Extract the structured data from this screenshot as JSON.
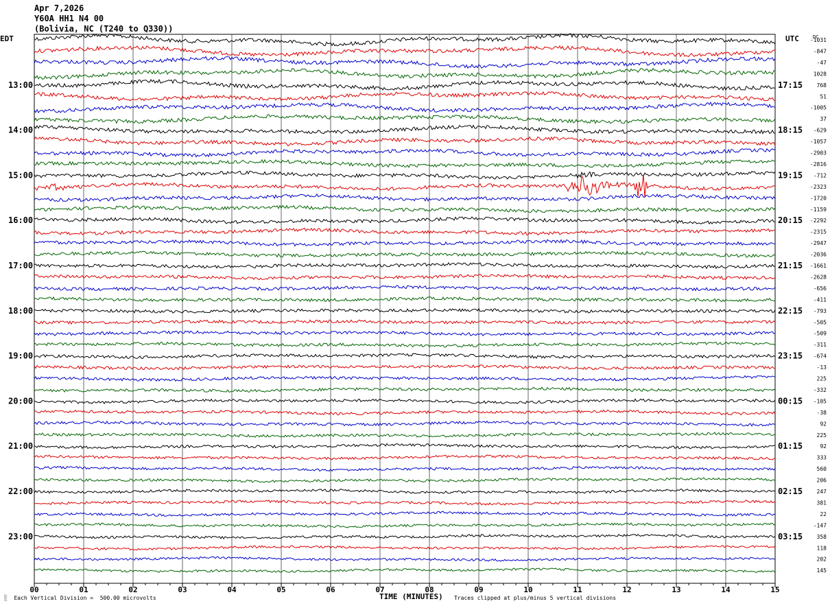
{
  "header": {
    "date": "Apr 7,2026",
    "station": "Y60A HH1 N4 00",
    "location": "(Bolivia, NC (T240 to Q330))"
  },
  "labels": {
    "left_tz": "EDT",
    "right_tz": "UTC",
    "dc": "DC"
  },
  "footer": {
    "scale_prefix": "░",
    "scale_note": "Each Vertical Division =  500.00 microvolts",
    "xlabel": "TIME (MINUTES)",
    "clip_note": "Traces clipped at plus/minus 5 vertical divisions"
  },
  "colors": [
    "#000000",
    "#dd0000",
    "#0000cc",
    "#006400"
  ],
  "chart_data": {
    "type": "line",
    "x_ticks": [
      "00",
      "01",
      "02",
      "03",
      "04",
      "05",
      "06",
      "07",
      "08",
      "09",
      "10",
      "11",
      "12",
      "13",
      "14",
      "15"
    ],
    "xlim": [
      0,
      15
    ],
    "row_count": 48,
    "left_time_labels": [
      "13:00",
      "14:00",
      "15:00",
      "16:00",
      "17:00",
      "18:00",
      "19:00",
      "20:00",
      "21:00",
      "22:00",
      "23:00"
    ],
    "right_time_labels": [
      "17:15",
      "18:15",
      "19:15",
      "20:15",
      "21:15",
      "22:15",
      "23:15",
      "00:15",
      "01:15",
      "02:15",
      "03:15"
    ],
    "dc_offsets": [
      "-1031",
      "-847",
      "-47",
      "1028",
      "768",
      "51",
      "-1005",
      "37",
      "-629",
      "-1057",
      "-2903",
      "-2816",
      "-712",
      "-2323",
      "-1720",
      "-1159",
      "-2292",
      "-2315",
      "-2947",
      "-2036",
      "-1661",
      "-2628",
      "-656",
      "-411",
      "-793",
      "-505",
      "-509",
      "-311",
      "-674",
      "-13",
      "225",
      "-332",
      "-105",
      "-38",
      "92",
      "225",
      "92",
      "333",
      "560",
      "206",
      "247",
      "381",
      "22",
      "-147",
      "358",
      "118",
      "202",
      "145"
    ],
    "events": [
      {
        "row": 13,
        "minute": 0.1,
        "width": 1.0,
        "amplitude": 4
      },
      {
        "row": 13,
        "minute": 10.8,
        "width": 1.2,
        "amplitude": 14
      },
      {
        "row": 13,
        "minute": 12.2,
        "width": 0.35,
        "amplitude": 26
      },
      {
        "row": 12,
        "minute": 11.0,
        "width": 0.6,
        "amplitude": 5
      }
    ]
  }
}
